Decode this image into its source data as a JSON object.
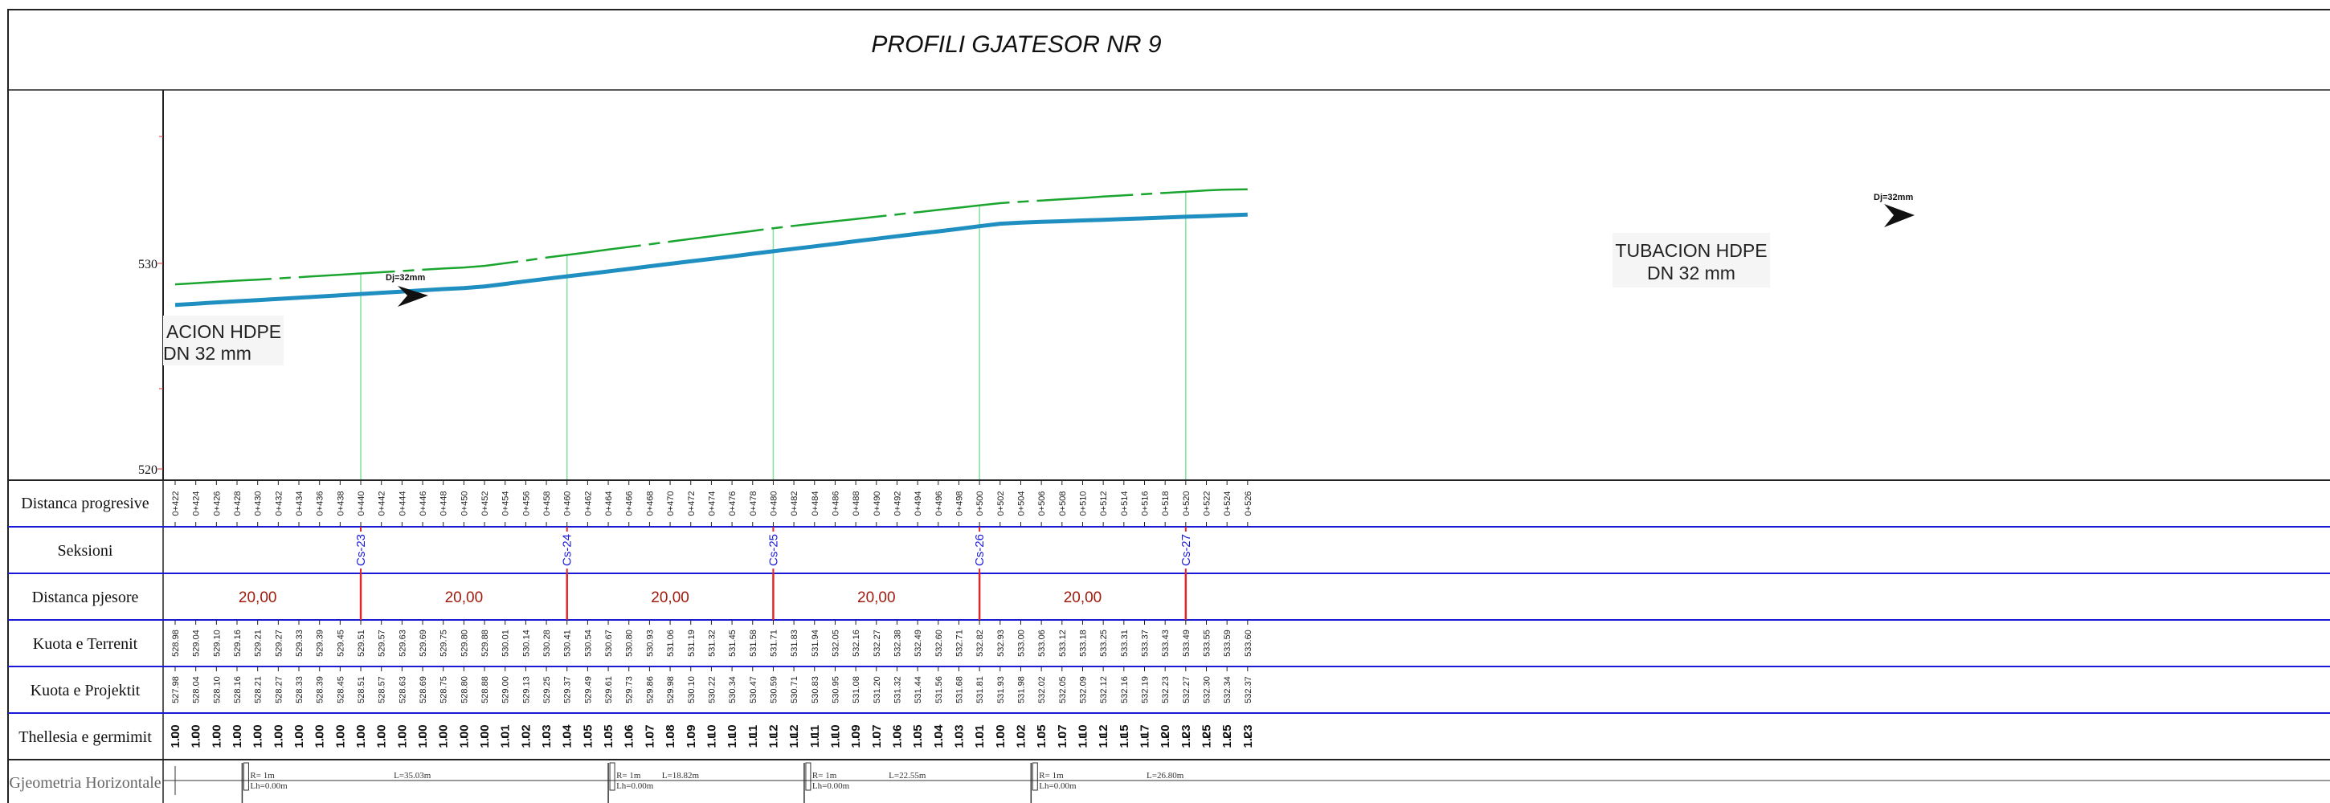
{
  "title": "PROFILI GJATESOR NR 9",
  "axis": {
    "labels": [
      "530",
      "520"
    ]
  },
  "rows": {
    "distanca_progresive": "Distanca progresive",
    "seksioni": "Seksioni",
    "distanca_pjesore": "Distanca pjesore",
    "kuota_terrenit": "Kuota e Terrenit",
    "kuota_projektit": "Kuota e Projektit",
    "thellesia": "Thellesia e germimit",
    "gjeometria": "Gjeometria Horizontale"
  },
  "pipe_labels": [
    {
      "line1": "ACION HDPE",
      "line2": "DN 32 mm"
    },
    {
      "line1": "TUBACION HDPE",
      "line2": "DN 32 mm"
    }
  ],
  "dj_labels": [
    "Dj=32mm",
    "Dj=32mm"
  ],
  "stations": [
    "0+422",
    "0+424",
    "0+426",
    "0+428",
    "0+430",
    "0+432",
    "0+434",
    "0+436",
    "0+438",
    "0+440",
    "0+442",
    "0+444",
    "0+446",
    "0+448",
    "0+450",
    "0+452",
    "0+454",
    "0+456",
    "0+458",
    "0+460",
    "0+462",
    "0+464",
    "0+466",
    "0+468",
    "0+470",
    "0+472",
    "0+474",
    "0+476",
    "0+478",
    "0+480",
    "0+482",
    "0+484",
    "0+486",
    "0+488",
    "0+490",
    "0+492",
    "0+494",
    "0+496",
    "0+498",
    "0+500",
    "0+502",
    "0+504",
    "0+506",
    "0+508",
    "0+510",
    "0+512",
    "0+514",
    "0+516",
    "0+518",
    "0+520",
    "0+522",
    "0+524",
    "0+526"
  ],
  "terrain": [
    "528.98",
    "529.04",
    "529.10",
    "529.16",
    "529.21",
    "529.27",
    "529.33",
    "529.39",
    "529.45",
    "529.51",
    "529.57",
    "529.63",
    "529.69",
    "529.75",
    "529.80",
    "529.88",
    "530.01",
    "530.14",
    "530.28",
    "530.41",
    "530.54",
    "530.67",
    "530.80",
    "530.93",
    "531.06",
    "531.19",
    "531.32",
    "531.45",
    "531.58",
    "531.71",
    "531.83",
    "531.94",
    "532.05",
    "532.16",
    "532.27",
    "532.38",
    "532.49",
    "532.60",
    "532.71",
    "532.82",
    "532.93",
    "533.00",
    "533.06",
    "533.12",
    "533.18",
    "533.25",
    "533.31",
    "533.37",
    "533.43",
    "533.49",
    "533.55",
    "533.59",
    "533.60"
  ],
  "project": [
    "527.98",
    "528.04",
    "528.10",
    "528.16",
    "528.21",
    "528.27",
    "528.33",
    "528.39",
    "528.45",
    "528.51",
    "528.57",
    "528.63",
    "528.69",
    "528.75",
    "528.80",
    "528.88",
    "529.00",
    "529.13",
    "529.25",
    "529.37",
    "529.49",
    "529.61",
    "529.73",
    "529.86",
    "529.98",
    "530.10",
    "530.22",
    "530.34",
    "530.47",
    "530.59",
    "530.71",
    "530.83",
    "530.95",
    "531.08",
    "531.20",
    "531.32",
    "531.44",
    "531.56",
    "531.68",
    "531.81",
    "531.93",
    "531.98",
    "532.02",
    "532.05",
    "532.09",
    "532.12",
    "532.16",
    "532.19",
    "532.23",
    "532.27",
    "532.30",
    "532.34",
    "532.37"
  ],
  "depth": [
    "1.00",
    "1.00",
    "1.00",
    "1.00",
    "1.00",
    "1.00",
    "1.00",
    "1.00",
    "1.00",
    "1.00",
    "1.00",
    "1.00",
    "1.00",
    "1.00",
    "1.00",
    "1.00",
    "1.01",
    "1.02",
    "1.03",
    "1.04",
    "1.05",
    "1.05",
    "1.06",
    "1.07",
    "1.08",
    "1.09",
    "1.10",
    "1.10",
    "1.11",
    "1.12",
    "1.12",
    "1.11",
    "1.10",
    "1.09",
    "1.07",
    "1.06",
    "1.05",
    "1.04",
    "1.03",
    "1.01",
    "1.00",
    "1.02",
    "1.05",
    "1.07",
    "1.10",
    "1.12",
    "1.15",
    "1.17",
    "1.20",
    "1.23",
    "1.25",
    "1.25",
    "1.23"
  ],
  "sections": [
    {
      "label": "Cs-23",
      "station": 440
    },
    {
      "label": "Cs-24",
      "station": 460
    },
    {
      "label": "Cs-25",
      "station": 480
    },
    {
      "label": "Cs-26",
      "station": 500
    },
    {
      "label": "Cs-27",
      "station": 520
    }
  ],
  "partial_distances": [
    {
      "label": "20,00",
      "station": 430
    },
    {
      "label": "20,00",
      "station": 450
    },
    {
      "label": "20,00",
      "station": 470
    },
    {
      "label": "20,00",
      "station": 490
    },
    {
      "label": "20,00",
      "station": 510
    }
  ],
  "geometry": {
    "segments": [
      {
        "label": "L=35.03m",
        "station": 445
      },
      {
        "label": "L=18.82m",
        "station": 471
      },
      {
        "label": "L=22.55m",
        "station": 493
      },
      {
        "label": "L=26.80m",
        "station": 518
      }
    ],
    "marks": [
      {
        "station": 428.5,
        "line1": "R= 1m",
        "line2": "Lh=0.00m"
      },
      {
        "station": 464,
        "line1": "R= 1m",
        "line2": "Lh=0.00m"
      },
      {
        "station": 483,
        "line1": "R= 1m",
        "line2": "Lh=0.00m"
      },
      {
        "station": 505,
        "line1": "R= 1m",
        "line2": "Lh=0.00m"
      }
    ]
  },
  "colors": {
    "terrain_line": "#1aa52f",
    "pipe_line": "#1e8fc0",
    "grid_blue": "#1a1ad6",
    "section_blue": "#1a1adf",
    "distance_red": "#a11b0e",
    "divider_red": "#e0282b",
    "vertical_green": "#7fe39a"
  }
}
